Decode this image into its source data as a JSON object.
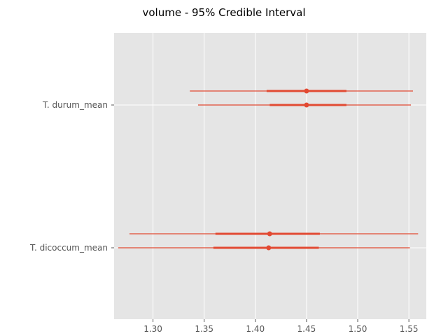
{
  "chart_data": {
    "type": "forest",
    "title": "volume - 95% Credible Interval",
    "xlabel": "",
    "ylabel": "",
    "xlim": [
      1.262,
      1.567
    ],
    "x_ticks": [
      1.3,
      1.35,
      1.4,
      1.45,
      1.5,
      1.55
    ],
    "x_tick_labels": [
      "1.30",
      "1.35",
      "1.40",
      "1.45",
      "1.50",
      "1.55"
    ],
    "y_categories": [
      "T. durum_mean",
      "T. dicoccum_mean"
    ],
    "grid": true,
    "colors": {
      "series": "#E24A33",
      "plot_bg": "#E5E5E5",
      "grid": "#FFFFFF",
      "tick_label": "#555555"
    },
    "series": [
      {
        "category": "T. durum_mean",
        "chain": 1,
        "mean": 1.45,
        "hdi_95": [
          1.336,
          1.554
        ],
        "iqr": [
          1.411,
          1.489
        ]
      },
      {
        "category": "T. durum_mean",
        "chain": 2,
        "mean": 1.45,
        "hdi_95": [
          1.344,
          1.552
        ],
        "iqr": [
          1.414,
          1.489
        ]
      },
      {
        "category": "T. dicoccum_mean",
        "chain": 1,
        "mean": 1.414,
        "hdi_95": [
          1.277,
          1.559
        ],
        "iqr": [
          1.361,
          1.463
        ]
      },
      {
        "category": "T. dicoccum_mean",
        "chain": 2,
        "mean": 1.413,
        "hdi_95": [
          1.266,
          1.551
        ],
        "iqr": [
          1.359,
          1.462
        ]
      }
    ]
  }
}
